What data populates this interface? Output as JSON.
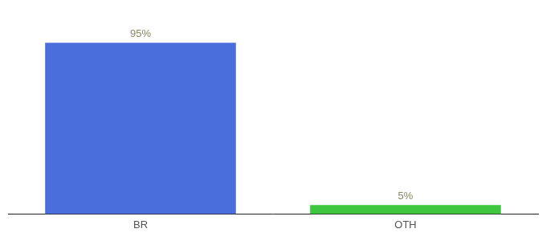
{
  "chart_data": {
    "type": "bar",
    "categories": [
      "BR",
      "OTH"
    ],
    "values": [
      95,
      5
    ],
    "value_labels": [
      "95%",
      "5%"
    ],
    "colors": [
      "#4a6edb",
      "#3ec63e"
    ],
    "ylim": [
      0,
      108
    ],
    "data_labels": true,
    "tick_labels": "x",
    "grid": false
  }
}
